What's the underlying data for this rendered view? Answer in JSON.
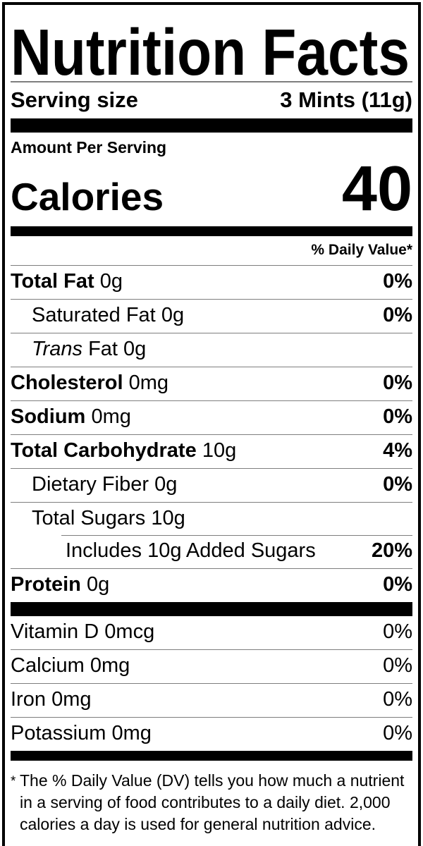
{
  "label": {
    "title": "Nutrition Facts",
    "serving": {
      "label": "Serving size",
      "value": "3 Mints (11g)"
    },
    "amount_per_serving": "Amount Per Serving",
    "calories": {
      "label": "Calories",
      "value": "40"
    },
    "daily_value_header": "% Daily Value*",
    "rows": [
      {
        "name": "Total Fat",
        "amount": "0g",
        "dv": "0%"
      },
      {
        "name": "Saturated Fat",
        "amount": "0g",
        "dv": "0%"
      },
      {
        "name": "Trans",
        "amount": "Fat 0g",
        "dv": ""
      },
      {
        "name": "Cholesterol",
        "amount": "0mg",
        "dv": "0%"
      },
      {
        "name": "Sodium",
        "amount": "0mg",
        "dv": "0%"
      },
      {
        "name": "Total Carbohydrate",
        "amount": "10g",
        "dv": "4%"
      },
      {
        "name": "Dietary Fiber",
        "amount": "0g",
        "dv": "0%"
      },
      {
        "name": "Total Sugars",
        "amount": "10g",
        "dv": ""
      },
      {
        "name": "Includes 10g Added Sugars",
        "amount": "",
        "dv": "20%"
      },
      {
        "name": "Protein",
        "amount": "0g",
        "dv": "0%"
      }
    ],
    "vitamins": [
      {
        "name": "Vitamin D",
        "amount": "0mcg",
        "dv": "0%"
      },
      {
        "name": "Calcium",
        "amount": "0mg",
        "dv": "0%"
      },
      {
        "name": "Iron",
        "amount": "0mg",
        "dv": "0%"
      },
      {
        "name": "Potassium",
        "amount": "0mg",
        "dv": "0%"
      }
    ],
    "footnote": {
      "marker": "*",
      "text": "The % Daily Value (DV) tells you how much a nutrient in a serving of food contributes to a daily diet. 2,000 calories a day is used for general nutrition advice."
    }
  },
  "colors": {
    "text": "#000000",
    "background": "#ffffff",
    "separator": "#7e7e7e",
    "bar": "#000000"
  }
}
